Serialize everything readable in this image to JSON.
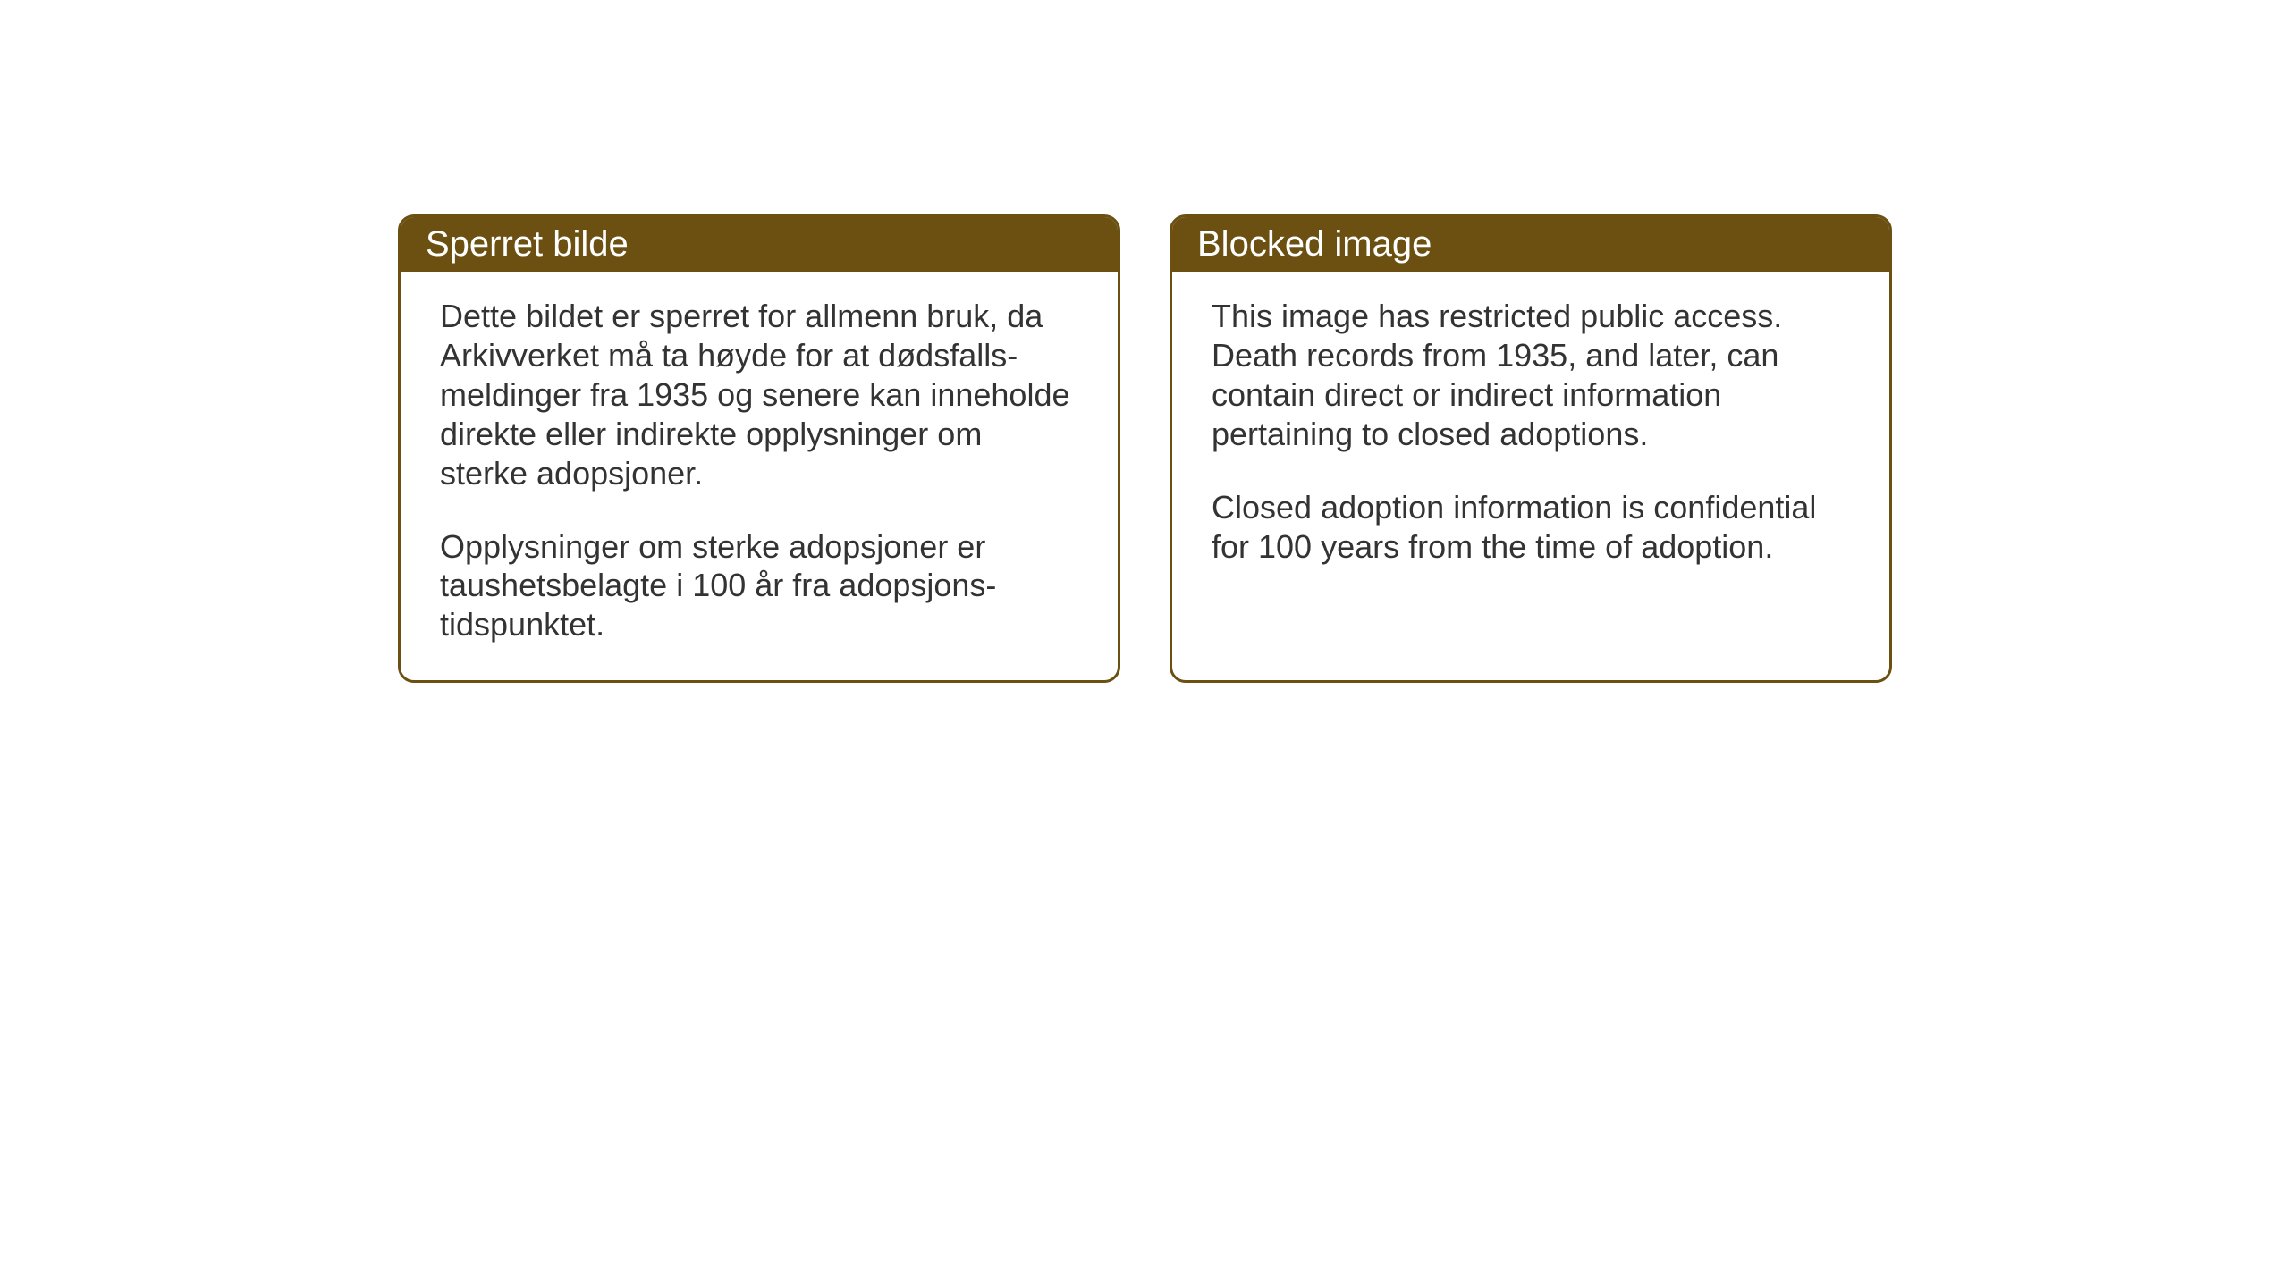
{
  "background_color": "#ffffff",
  "card_border_color": "#6b5012",
  "card_header_bg": "#6b5012",
  "card_header_text_color": "#ffffff",
  "card_body_text_color": "#333333",
  "card_border_width": 3,
  "card_border_radius": 18,
  "header_fontsize": 40,
  "body_fontsize": 36,
  "cards": {
    "norwegian": {
      "title": "Sperret bilde",
      "paragraph1": "Dette bildet er sperret for allmenn bruk, da Arkivverket må ta høyde for at dødsfalls-meldinger fra 1935 og senere kan inneholde direkte eller indirekte opplysninger om sterke adopsjoner.",
      "paragraph2": "Opplysninger om sterke adopsjoner er taushetsbelagte i 100 år fra adopsjons-tidspunktet."
    },
    "english": {
      "title": "Blocked image",
      "paragraph1": "This image has restricted public access. Death records from 1935, and later, can contain direct or indirect information pertaining to closed adoptions.",
      "paragraph2": "Closed adoption information is confidential for 100 years from the time of adoption."
    }
  }
}
